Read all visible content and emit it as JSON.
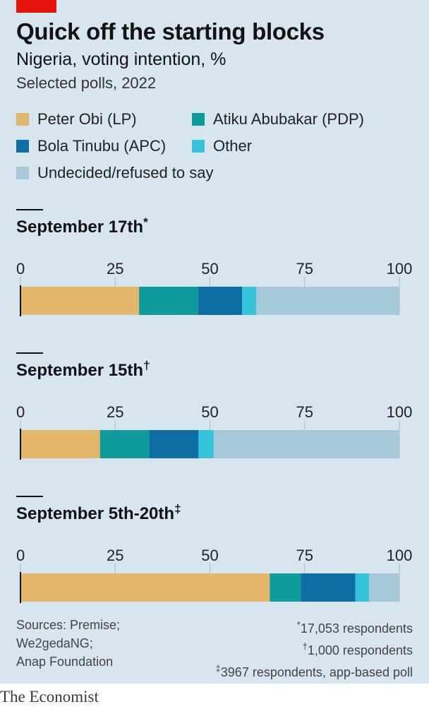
{
  "title": "Quick off the starting blocks",
  "subtitle": "Nigeria, voting intention, %",
  "note": "Selected polls, 2022",
  "colors": {
    "peter_obi": "#e3b66a",
    "atiku": "#0f9b9b",
    "tinubu": "#0e6ea3",
    "other": "#34c3da",
    "undecided": "#a5c9da"
  },
  "legend": [
    {
      "name": "Peter Obi (LP)",
      "color": "#e3b66a"
    },
    {
      "name": "Atiku Abubakar (PDP)",
      "color": "#0f9b9b"
    },
    {
      "name": "Bola Tinubu (APC)",
      "color": "#0e6ea3"
    },
    {
      "name": "Other",
      "color": "#34c3da"
    },
    {
      "name": "Undecided/refused to say",
      "color": "#a5c9da"
    }
  ],
  "chart_data": {
    "type": "bar",
    "orientation": "horizontal-stacked",
    "xlim": [
      0,
      100
    ],
    "ticks": [
      "0",
      "25",
      "50",
      "75",
      "100"
    ],
    "series_names": [
      "Peter Obi (LP)",
      "Atiku Abubakar (PDP)",
      "Bola Tinubu (APC)",
      "Other",
      "Undecided/refused to say"
    ],
    "polls": [
      {
        "label": "September 17th",
        "marker": "*",
        "values": [
          31.3,
          15.6,
          11.6,
          3.7,
          37.8
        ]
      },
      {
        "label": "September 15th",
        "marker": "†",
        "values": [
          21.0,
          13.0,
          13.0,
          4.0,
          49.0
        ]
      },
      {
        "label": "September 5th-20th",
        "marker": "‡",
        "values": [
          65.8,
          8.2,
          14.4,
          3.6,
          8.0
        ]
      }
    ]
  },
  "footer": {
    "sources": [
      "Sources: Premise;",
      "We2gedaNG;",
      "Anap Foundation"
    ],
    "notes": [
      {
        "marker": "*",
        "text": "17,053 respondents"
      },
      {
        "marker": "†",
        "text": "1,000 respondents"
      },
      {
        "marker": "‡",
        "text": "3967 respondents, app-based poll"
      }
    ]
  },
  "brand": "The Economist"
}
